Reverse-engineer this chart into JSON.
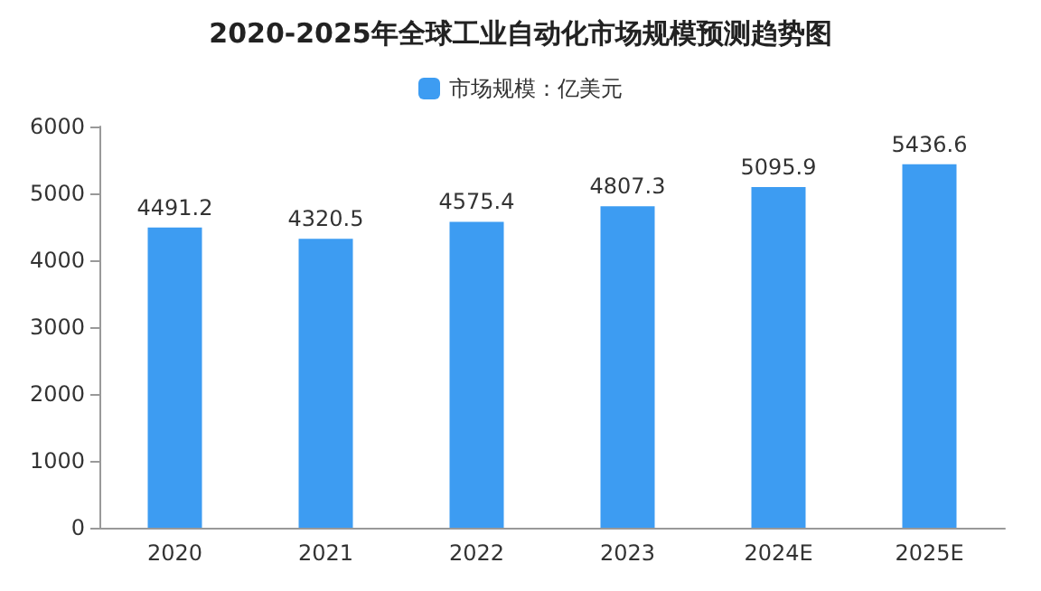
{
  "chart_data": {
    "type": "bar",
    "title": "2020-2025年全球工业自动化市场规模预测趋势图",
    "categories": [
      "2020",
      "2021",
      "2022",
      "2023",
      "2024E",
      "2025E"
    ],
    "series": [
      {
        "name": "市场规模：亿美元",
        "color": "#3d9cf2",
        "values": [
          4491.2,
          4320.5,
          4575.4,
          4807.3,
          5095.9,
          5436.6
        ]
      }
    ],
    "ylim": [
      0,
      6000
    ],
    "yticks": [
      0,
      1000,
      2000,
      3000,
      4000,
      5000,
      6000
    ],
    "data_labels": true,
    "legend": "top",
    "grid": false
  }
}
